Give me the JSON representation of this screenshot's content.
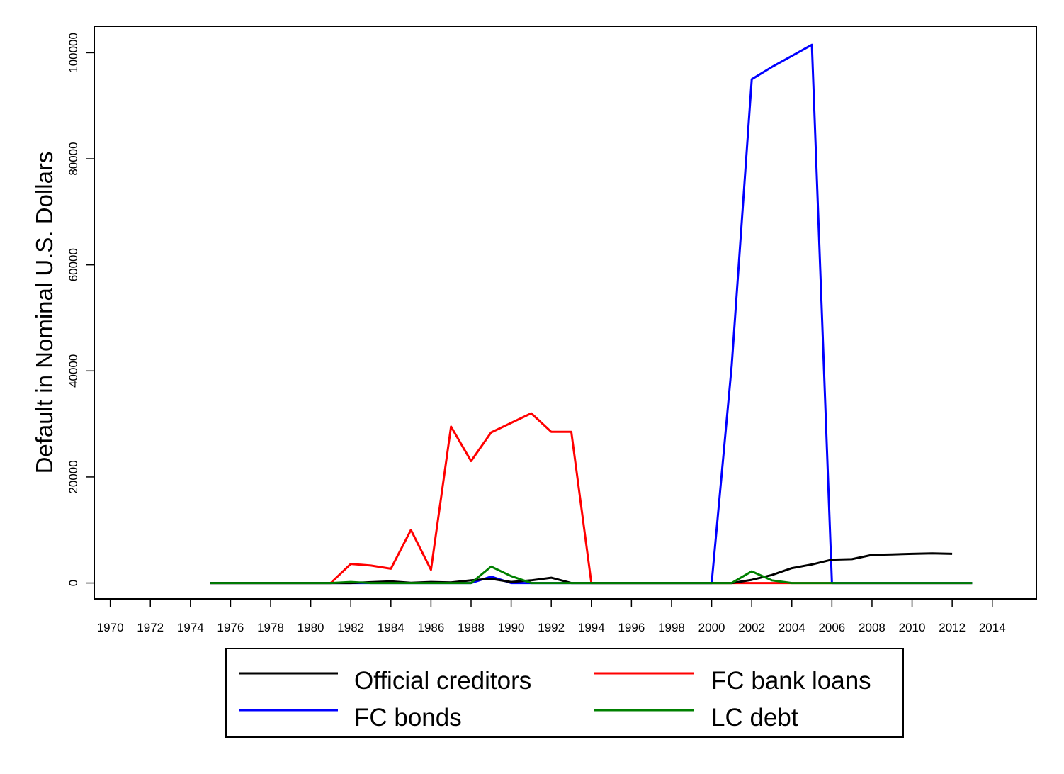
{
  "chart_data": {
    "type": "line",
    "title": "",
    "xlabel": "",
    "ylabel": "Default in Nominal U.S. Dollars",
    "xlim": [
      1969.2,
      2016.2
    ],
    "ylim": [
      -3000,
      105000
    ],
    "x_ticks": [
      1970,
      1972,
      1974,
      1976,
      1978,
      1980,
      1982,
      1984,
      1986,
      1988,
      1990,
      1992,
      1994,
      1996,
      1998,
      2000,
      2002,
      2004,
      2006,
      2008,
      2010,
      2012,
      2014
    ],
    "y_ticks": [
      0,
      20000,
      40000,
      60000,
      80000,
      100000
    ],
    "grid": false,
    "legend_position": "bottom",
    "series": [
      {
        "name": "Official creditors",
        "color": "#000000",
        "x": [
          1975,
          1976,
          1977,
          1978,
          1979,
          1980,
          1981,
          1982,
          1983,
          1984,
          1985,
          1986,
          1987,
          1988,
          1989,
          1990,
          1991,
          1992,
          1993,
          1994,
          1995,
          1996,
          1997,
          1998,
          1999,
          2000,
          2001,
          2002,
          2003,
          2004,
          2005,
          2006,
          2007,
          2008,
          2009,
          2010,
          2011,
          2012
        ],
        "values": [
          0,
          0,
          0,
          0,
          0,
          0,
          0,
          0,
          150,
          300,
          50,
          200,
          100,
          500,
          800,
          200,
          500,
          1000,
          0,
          0,
          0,
          0,
          0,
          0,
          0,
          0,
          0,
          600,
          1500,
          2800,
          3500,
          4400,
          4500,
          5300,
          5400,
          5500,
          5600,
          5500
        ]
      },
      {
        "name": "FC bank loans",
        "color": "#ff0000",
        "x": [
          1975,
          1976,
          1977,
          1978,
          1979,
          1980,
          1981,
          1982,
          1983,
          1984,
          1985,
          1986,
          1987,
          1988,
          1989,
          1990,
          1991,
          1992,
          1993,
          1994,
          1995,
          1996,
          1997,
          1998,
          1999,
          2000,
          2001,
          2002,
          2003,
          2004,
          2005,
          2006,
          2007,
          2008,
          2009,
          2010,
          2011,
          2012,
          2013
        ],
        "values": [
          0,
          0,
          0,
          0,
          0,
          0,
          0,
          3600,
          3300,
          2700,
          10000,
          2500,
          29500,
          23000,
          28400,
          30200,
          32000,
          28500,
          28500,
          0,
          0,
          0,
          0,
          0,
          0,
          0,
          0,
          0,
          0,
          0,
          0,
          0,
          0,
          0,
          0,
          0,
          0,
          0,
          0
        ]
      },
      {
        "name": "FC bonds",
        "color": "#0000ff",
        "x": [
          1975,
          1976,
          1977,
          1978,
          1979,
          1980,
          1981,
          1982,
          1983,
          1984,
          1985,
          1986,
          1987,
          1988,
          1989,
          1990,
          1991,
          1992,
          1993,
          1994,
          1995,
          1996,
          1997,
          1998,
          1999,
          2000,
          2001,
          2002,
          2003,
          2004,
          2005,
          2006,
          2007,
          2008,
          2009,
          2010,
          2011,
          2012,
          2013
        ],
        "values": [
          0,
          0,
          0,
          0,
          0,
          0,
          0,
          0,
          0,
          0,
          0,
          0,
          0,
          0,
          1200,
          0,
          0,
          0,
          0,
          0,
          0,
          0,
          0,
          0,
          0,
          0,
          41000,
          95000,
          97300,
          99400,
          101500,
          0,
          0,
          0,
          0,
          0,
          0,
          0,
          0
        ]
      },
      {
        "name": "LC debt",
        "color": "#008000",
        "x": [
          1975,
          1976,
          1977,
          1978,
          1979,
          1980,
          1981,
          1982,
          1983,
          1984,
          1985,
          1986,
          1987,
          1988,
          1989,
          1990,
          1991,
          1992,
          1993,
          1994,
          1995,
          1996,
          1997,
          1998,
          1999,
          2000,
          2001,
          2002,
          2003,
          2004,
          2005,
          2006,
          2007,
          2008,
          2009,
          2010,
          2011,
          2012,
          2013
        ],
        "values": [
          0,
          0,
          0,
          0,
          0,
          0,
          0,
          200,
          0,
          0,
          0,
          0,
          0,
          0,
          3100,
          1300,
          0,
          0,
          0,
          0,
          0,
          0,
          0,
          0,
          0,
          0,
          0,
          2200,
          500,
          0,
          0,
          0,
          0,
          0,
          0,
          0,
          0,
          0,
          0
        ]
      }
    ]
  }
}
